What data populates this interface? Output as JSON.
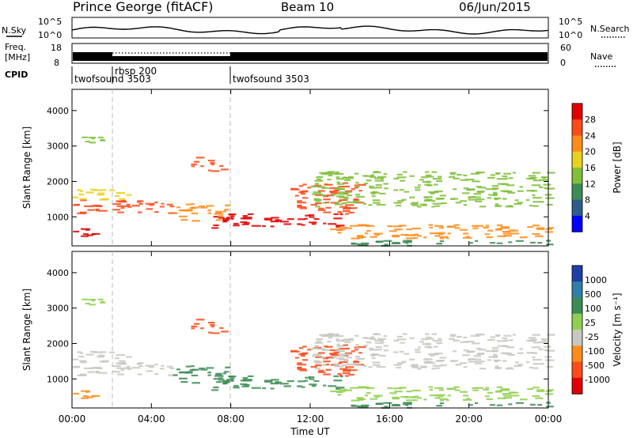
{
  "header": {
    "station": "Prince George (fitACF)",
    "beam": "Beam 10",
    "date": "06/Jun/2015"
  },
  "noise_panel": {
    "left_label": "N.Sky",
    "right_label": "N.Search",
    "left_ticks": [
      "10^5",
      "10^0"
    ],
    "right_ticks": [
      "10^5",
      "10^0"
    ],
    "y_scale": "log"
  },
  "freq_panel": {
    "left_label_top": "Freq.",
    "left_label_unit": "[MHz]",
    "right_label": "Nave",
    "left_ticks": [
      "18",
      "8"
    ],
    "right_ticks": [
      "60",
      "0"
    ]
  },
  "cpid": {
    "label": "CPID",
    "segments": [
      {
        "name": "twofsound 3503",
        "start_h": 0,
        "end_h": 1.85
      },
      {
        "name": "rbsp 200",
        "start_h": 1.85,
        "end_h": 7.95
      },
      {
        "name": "twofsound 3503",
        "start_h": 7.95,
        "end_h": 24
      }
    ]
  },
  "power_panel": {
    "ylabel": "Slant Range [km]",
    "yticks": [
      "4000",
      "3000",
      "2000",
      "1000"
    ],
    "colorbar_label": "Power [dB]",
    "colorbar_ticks": [
      "28",
      "24",
      "20",
      "16",
      "12",
      "8",
      "4"
    ],
    "colors": [
      "#e00000",
      "#ff4a1a",
      "#ff8c1a",
      "#e8d020",
      "#7fbf3a",
      "#3c8c55",
      "#2d5c8a",
      "#0000ff"
    ]
  },
  "velocity_panel": {
    "ylabel": "Slant Range [km]",
    "yticks": [
      "4000",
      "3000",
      "2000",
      "1000"
    ],
    "colorbar_label": "Velocity [m s⁻¹]",
    "colorbar_ticks": [
      "1000",
      "500",
      "100",
      "25",
      "-25",
      "-100",
      "-500",
      "-1000"
    ],
    "colors": [
      "#1f3fa8",
      "#2f7fa8",
      "#3c8c55",
      "#8fd050",
      "#c8c8c0",
      "#ff8c1a",
      "#ff4a1a",
      "#e00000"
    ]
  },
  "xaxis": {
    "label": "Time UT",
    "ticks": [
      "00:00",
      "04:00",
      "08:00",
      "12:00",
      "16:00",
      "20:00",
      "00:00"
    ]
  },
  "chart_data": {
    "type": "heatmap",
    "x_range_hours": [
      0,
      24
    ],
    "y_range_km": [
      180,
      4600
    ],
    "power_db_range": [
      0,
      30
    ],
    "velocity_range": [
      -1000,
      1000
    ],
    "echo_bands": [
      {
        "t0": 0.0,
        "t1": 5.0,
        "r0": 1100,
        "r1": 1500,
        "power_db": 26,
        "velocity": -25
      },
      {
        "t0": 0.0,
        "t1": 3.0,
        "r0": 1500,
        "r1": 1800,
        "power_db": 16,
        "velocity": 0
      },
      {
        "t0": 0.0,
        "t1": 1.0,
        "r0": 450,
        "r1": 700,
        "power_db": 28,
        "velocity": -100
      },
      {
        "t0": 0.4,
        "t1": 1.5,
        "r0": 3100,
        "r1": 3300,
        "power_db": 12,
        "velocity": 25
      },
      {
        "t0": 5.0,
        "t1": 8.0,
        "r0": 900,
        "r1": 1400,
        "power_db": 22,
        "velocity": 100
      },
      {
        "t0": 6.0,
        "t1": 7.5,
        "r0": 2300,
        "r1": 2700,
        "power_db": 24,
        "velocity": -300
      },
      {
        "t0": 7.0,
        "t1": 13.5,
        "r0": 700,
        "r1": 1100,
        "power_db": 29,
        "velocity": 300
      },
      {
        "t0": 11.0,
        "t1": 14.5,
        "r0": 1100,
        "r1": 2000,
        "power_db": 26,
        "velocity": -500
      },
      {
        "t0": 12.0,
        "t1": 24.0,
        "r0": 1300,
        "r1": 2300,
        "power_db": 14,
        "velocity": -25
      },
      {
        "t0": 13.0,
        "t1": 24.0,
        "r0": 400,
        "r1": 800,
        "power_db": 22,
        "velocity": 25
      },
      {
        "t0": 14.0,
        "t1": 24.0,
        "r0": 200,
        "r1": 350,
        "power_db": 8,
        "velocity": 100
      }
    ]
  }
}
